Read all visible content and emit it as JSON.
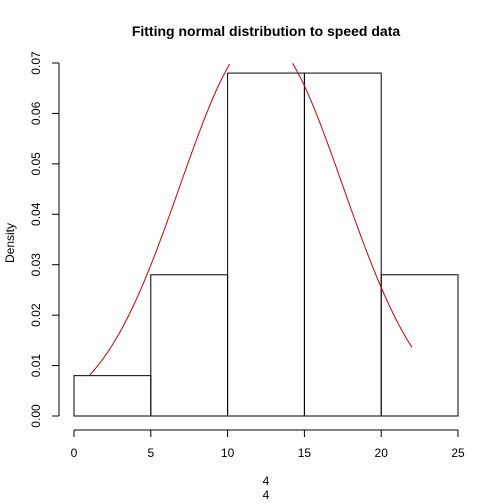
{
  "chart_data": {
    "type": "histogram",
    "title": "Fitting normal distribution to speed data",
    "xlabel": "",
    "ylabel": "Density",
    "bottom_labels": [
      "4",
      "4"
    ],
    "xlim": [
      0,
      25
    ],
    "ylim": [
      0,
      0.07
    ],
    "x_ticks": [
      0,
      5,
      10,
      15,
      20,
      25
    ],
    "y_ticks": [
      0.0,
      0.01,
      0.02,
      0.03,
      0.04,
      0.05,
      0.06,
      0.07
    ],
    "y_tick_labels": [
      "0.00",
      "0.01",
      "0.02",
      "0.03",
      "0.04",
      "0.05",
      "0.06",
      "0.07"
    ],
    "bins": [
      {
        "start": 0,
        "end": 5,
        "density": 0.008
      },
      {
        "start": 5,
        "end": 10,
        "density": 0.028
      },
      {
        "start": 10,
        "end": 15,
        "density": 0.068
      },
      {
        "start": 15,
        "end": 20,
        "density": 0.068
      },
      {
        "start": 20,
        "end": 25,
        "density": 0.028
      }
    ],
    "normal_fit": {
      "mean": 12.2,
      "sd": 5.3,
      "x_range": [
        1,
        22
      ]
    },
    "colors": {
      "bars": "#000000",
      "curve": "#cc0000"
    }
  }
}
